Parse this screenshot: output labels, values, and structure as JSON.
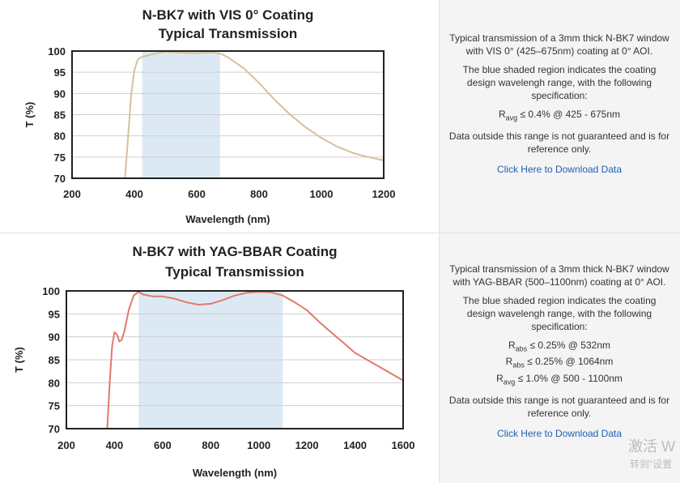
{
  "chart_data": [
    {
      "type": "line",
      "title": "N-BK7 with VIS 0° Coating",
      "subtitle": "Typical Transmission",
      "xlabel": "Wavelength (nm)",
      "ylabel": "T (%)",
      "xlim": [
        200,
        1200
      ],
      "ylim": [
        70,
        100
      ],
      "xticks": [
        200,
        400,
        600,
        800,
        1000,
        1200
      ],
      "yticks": [
        70,
        75,
        80,
        85,
        90,
        95,
        100
      ],
      "grid": "horizontal",
      "shaded_region": [
        425,
        675
      ],
      "series": [
        {
          "name": "N-BK7 with VIS 0° Coating",
          "color": "#d8c09a",
          "x": [
            370,
            380,
            390,
            400,
            410,
            420,
            440,
            460,
            480,
            500,
            550,
            600,
            650,
            680,
            700,
            750,
            800,
            850,
            900,
            950,
            1000,
            1050,
            1100,
            1150,
            1200
          ],
          "y": [
            70,
            80,
            90,
            95.5,
            97.8,
            98.5,
            98.9,
            99.3,
            99.6,
            99.8,
            99.6,
            99.5,
            99.7,
            99.3,
            98.5,
            96,
            92.5,
            88.5,
            85,
            82,
            79.5,
            77.5,
            76,
            75,
            74.2
          ]
        }
      ]
    },
    {
      "type": "line",
      "title": "N-BK7 with YAG-BBAR Coating",
      "subtitle": "Typical Transmission",
      "xlabel": "Wavelength (nm)",
      "ylabel": "T (%)",
      "xlim": [
        200,
        1600
      ],
      "ylim": [
        70,
        100
      ],
      "xticks": [
        200,
        400,
        600,
        800,
        1000,
        1200,
        1400,
        1600
      ],
      "yticks": [
        70,
        75,
        80,
        85,
        90,
        95,
        100
      ],
      "grid": "horizontal",
      "shaded_region": [
        500,
        1100
      ],
      "series": [
        {
          "name": "N-BK7 with YAG-BBAR Coating",
          "color": "#e07a6a",
          "x": [
            370,
            380,
            390,
            400,
            410,
            420,
            430,
            440,
            450,
            460,
            480,
            500,
            520,
            560,
            600,
            650,
            700,
            750,
            800,
            850,
            900,
            950,
            1000,
            1050,
            1100,
            1150,
            1200,
            1250,
            1300,
            1350,
            1400,
            1450,
            1500,
            1550,
            1600
          ],
          "y": [
            70,
            80,
            88,
            91,
            90.5,
            89,
            89.3,
            91,
            93.5,
            96,
            99,
            99.8,
            99.2,
            98.8,
            98.8,
            98.3,
            97.5,
            97,
            97.2,
            98,
            99,
            99.6,
            99.8,
            99.7,
            99,
            97.5,
            95.8,
            93.3,
            91,
            88.8,
            86.5,
            85,
            83.5,
            82,
            80.5
          ]
        }
      ]
    }
  ],
  "panels": [
    {
      "intro": "Typical transmission of a 3mm thick N-BK7 window with VIS 0° (425–675nm) coating at 0° AOI.",
      "region_note": "The blue shaded region indicates the coating design wavelengh range, with the following specification:",
      "specs": [
        {
          "symbol": "R",
          "sub": "avg",
          "text": "≤ 0.4% @ 425 - 675nm"
        }
      ],
      "disclaimer": "Data outside this range is not guaranteed and is for reference only.",
      "link_label": "Click Here to Download Data"
    },
    {
      "intro": "Typical transmission of a 3mm thick N-BK7 window with YAG-BBAR (500–1100nm) coating at 0° AOI.",
      "region_note": "The blue shaded region indicates the coating design wavelengh range, with the following specification:",
      "specs": [
        {
          "symbol": "R",
          "sub": "abs",
          "text": "≤ 0.25% @ 532nm"
        },
        {
          "symbol": "R",
          "sub": "abs",
          "text": "≤ 0.25% @ 1064nm"
        },
        {
          "symbol": "R",
          "sub": "avg",
          "text": "≤ 1.0% @ 500 - 1100nm"
        }
      ],
      "disclaimer": "Data outside this range is not guaranteed and is for reference only.",
      "link_label": "Click Here to Download Data"
    }
  ],
  "watermark": {
    "line1": "激活 W",
    "line2": "转到\"设置"
  },
  "colors": {
    "shade": "#dce9f5",
    "grid": "#cfcfcf",
    "link": "#1f5fb4"
  }
}
